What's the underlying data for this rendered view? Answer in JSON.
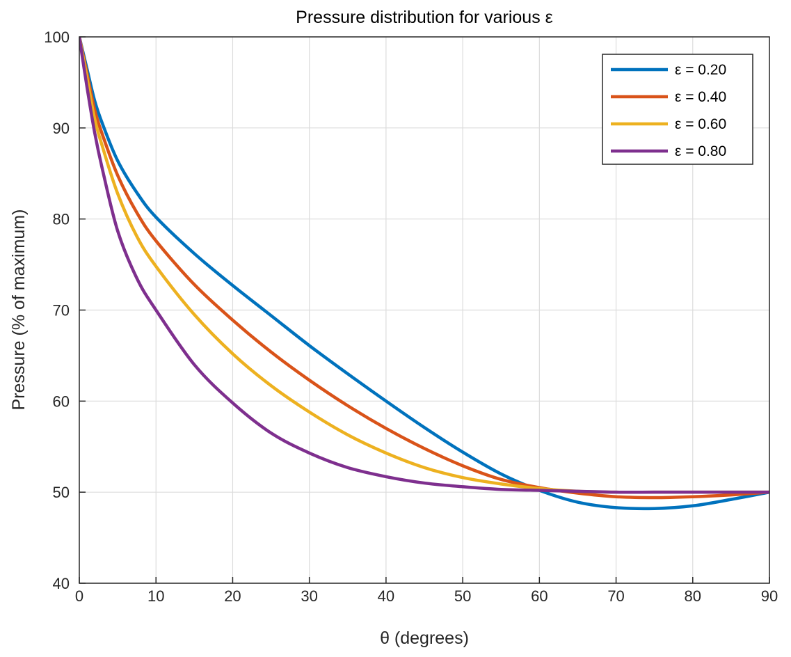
{
  "chart_data": {
    "type": "line",
    "title": "Pressure distribution for various ε",
    "xlabel": "θ (degrees)",
    "ylabel": "Pressure (% of maximum)",
    "xlim": [
      0,
      90
    ],
    "ylim": [
      40,
      100
    ],
    "xticks": [
      0,
      10,
      20,
      30,
      40,
      50,
      60,
      70,
      80,
      90
    ],
    "yticks": [
      40,
      50,
      60,
      70,
      80,
      90,
      100
    ],
    "grid": true,
    "legend_position": "top-right",
    "x": [
      0,
      1,
      2,
      3,
      5,
      7.5,
      10,
      15,
      20,
      25,
      30,
      35,
      40,
      45,
      50,
      55,
      60,
      65,
      70,
      75,
      80,
      85,
      90
    ],
    "series": [
      {
        "name": "ε = 0.20",
        "color": "#0072BD",
        "values": [
          100,
          96.5,
          93.0,
          90.5,
          86.4,
          82.9,
          80.2,
          76.2,
          72.7,
          69.4,
          66.1,
          63.0,
          60.0,
          57.1,
          54.4,
          52.0,
          50.2,
          48.9,
          48.3,
          48.2,
          48.5,
          49.2,
          50.0
        ]
      },
      {
        "name": "ε = 0.40",
        "color": "#D95319",
        "values": [
          100,
          96.0,
          92.0,
          89.3,
          84.8,
          80.7,
          77.6,
          72.8,
          68.9,
          65.4,
          62.3,
          59.5,
          57.0,
          54.8,
          52.9,
          51.4,
          50.5,
          49.9,
          49.5,
          49.4,
          49.5,
          49.7,
          50.0
        ]
      },
      {
        "name": "ε = 0.60",
        "color": "#EDB120",
        "values": [
          100,
          95.5,
          91.0,
          88.0,
          82.8,
          78.1,
          74.8,
          69.5,
          65.2,
          61.7,
          58.8,
          56.3,
          54.3,
          52.7,
          51.6,
          50.9,
          50.4,
          50.1,
          50.0,
          50.0,
          50.0,
          50.0,
          50.0
        ]
      },
      {
        "name": "ε = 0.80",
        "color": "#7E2F8E",
        "values": [
          100,
          94.5,
          89.5,
          85.5,
          78.7,
          73.5,
          70.0,
          64.0,
          59.8,
          56.5,
          54.3,
          52.7,
          51.7,
          51.0,
          50.6,
          50.3,
          50.2,
          50.1,
          50.0,
          50.0,
          50.0,
          50.0,
          50.0
        ]
      }
    ]
  }
}
